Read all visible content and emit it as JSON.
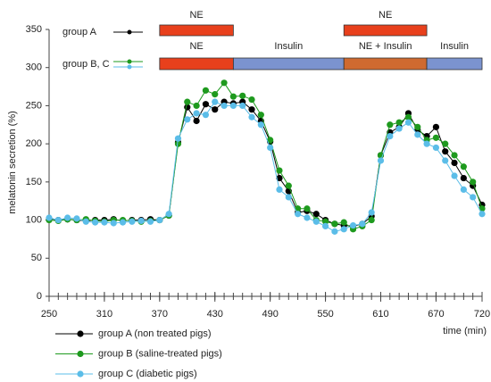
{
  "chart_data": {
    "type": "line",
    "ylabel": "melatonin secretion (%)",
    "xlabel": "time (min)",
    "xlim": [
      250,
      720
    ],
    "ylim": [
      0,
      350
    ],
    "xticks": [
      250,
      310,
      370,
      430,
      490,
      550,
      610,
      670,
      720
    ],
    "yticks": [
      0,
      50,
      100,
      150,
      200,
      250,
      300,
      350
    ],
    "xminor_step": 10,
    "x": [
      250,
      260,
      270,
      280,
      290,
      300,
      310,
      320,
      330,
      340,
      350,
      360,
      370,
      380,
      390,
      400,
      410,
      420,
      430,
      440,
      450,
      460,
      470,
      480,
      490,
      500,
      510,
      520,
      530,
      540,
      550,
      560,
      570,
      580,
      590,
      600,
      610,
      620,
      630,
      640,
      650,
      660,
      670,
      680,
      690,
      700,
      710,
      720
    ],
    "series": [
      {
        "name": "group A (non treated pigs)",
        "color": "#000000",
        "values": [
          102,
          100,
          101,
          100,
          99,
          100,
          100,
          101,
          99,
          100,
          100,
          101,
          100,
          106,
          202,
          248,
          230,
          252,
          245,
          255,
          253,
          255,
          245,
          230,
          203,
          155,
          138,
          110,
          112,
          108,
          100,
          95,
          93,
          92,
          95,
          105,
          185,
          215,
          222,
          240,
          218,
          210,
          222,
          190,
          175,
          155,
          145,
          120
        ]
      },
      {
        "name": "group B (saline-treated pigs)",
        "color": "#1e9a1e",
        "values": [
          100,
          99,
          101,
          100,
          101,
          99,
          98,
          100,
          100,
          99,
          98,
          99,
          100,
          106,
          200,
          255,
          250,
          270,
          265,
          280,
          262,
          263,
          258,
          238,
          205,
          165,
          145,
          115,
          115,
          100,
          98,
          95,
          97,
          88,
          92,
          100,
          185,
          225,
          228,
          235,
          222,
          205,
          208,
          200,
          185,
          170,
          150,
          115
        ]
      },
      {
        "name": "group C (diabetic pigs)",
        "color": "#5bbde8",
        "values": [
          103,
          100,
          103,
          102,
          98,
          97,
          97,
          96,
          97,
          98,
          99,
          98,
          100,
          108,
          207,
          232,
          240,
          238,
          255,
          250,
          250,
          250,
          235,
          225,
          195,
          140,
          130,
          108,
          103,
          98,
          92,
          85,
          88,
          93,
          95,
          110,
          178,
          210,
          220,
          228,
          212,
          200,
          195,
          178,
          158,
          140,
          130,
          108
        ]
      }
    ],
    "timeline": [
      {
        "label": "group A",
        "segments": [
          {
            "label": "NE",
            "start": 370,
            "end": 450,
            "color": "#e8401c"
          },
          {
            "label": "NE",
            "start": 570,
            "end": 660,
            "color": "#e8401c"
          }
        ]
      },
      {
        "label": "group B, C",
        "segments": [
          {
            "label": "NE",
            "start": 370,
            "end": 450,
            "color": "#e8401c"
          },
          {
            "label": "Insulin",
            "start": 450,
            "end": 570,
            "color": "#7b93cf"
          },
          {
            "label": "NE + Insulin",
            "start": 570,
            "end": 660,
            "color": "#cf6a30"
          },
          {
            "label": "Insulin",
            "start": 660,
            "end": 720,
            "color": "#7b93cf"
          }
        ]
      }
    ]
  }
}
